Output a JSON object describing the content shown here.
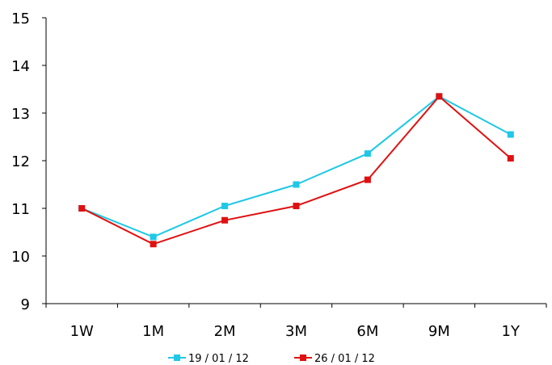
{
  "chart_data": {
    "type": "line",
    "categories": [
      "1W",
      "1M",
      "2M",
      "3M",
      "6M",
      "9M",
      "1Y"
    ],
    "series": [
      {
        "name": "19 / 01 / 12",
        "color": "#1ec8e6",
        "values": [
          11.0,
          10.4,
          11.05,
          11.5,
          12.15,
          13.35,
          12.55
        ]
      },
      {
        "name": "26 / 01 / 12",
        "color": "#e01010",
        "values": [
          11.0,
          10.25,
          10.75,
          11.05,
          11.6,
          13.35,
          12.05
        ]
      }
    ],
    "y_ticks": [
      "9",
      "10",
      "11",
      "12",
      "13",
      "14",
      "15"
    ],
    "ylim": [
      9,
      15
    ],
    "grid": false,
    "legend_position": "bottom"
  }
}
